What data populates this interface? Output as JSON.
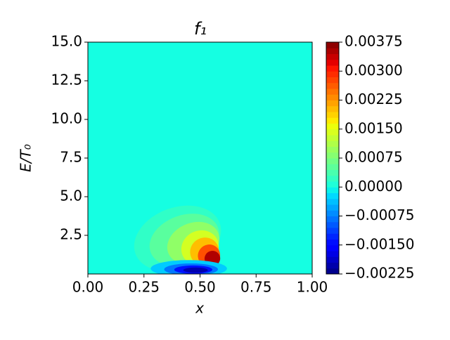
{
  "chart_data": {
    "type": "contour",
    "title": "f₁",
    "x_label": "x",
    "y_label": "E/T₀",
    "xlim": [
      0,
      1
    ],
    "ylim": [
      0,
      15
    ],
    "xticks": [
      {
        "value": 0,
        "label": "0.00"
      },
      {
        "value": 0.25,
        "label": "0.25"
      },
      {
        "value": 0.5,
        "label": "0.50"
      },
      {
        "value": 0.75,
        "label": "0.75"
      },
      {
        "value": 1,
        "label": "1.00"
      }
    ],
    "yticks": [
      {
        "value": 2.5,
        "label": "2.5"
      },
      {
        "value": 5,
        "label": "5.0"
      },
      {
        "value": 7.5,
        "label": "7.5"
      },
      {
        "value": 10,
        "label": "10.0"
      },
      {
        "value": 12.5,
        "label": "12.5"
      },
      {
        "value": 15,
        "label": "15.0"
      }
    ],
    "colormap": "jet",
    "background_level": 0,
    "clim": [
      -0.00225,
      0.00375
    ],
    "cticks": [
      {
        "value": -0.00225,
        "label": "−0.00225"
      },
      {
        "value": -0.0015,
        "label": "−0.00150"
      },
      {
        "value": -0.00075,
        "label": "−0.00075"
      },
      {
        "value": 0,
        "label": "0.00000"
      },
      {
        "value": 0.00075,
        "label": "0.00075"
      },
      {
        "value": 0.0015,
        "label": "0.00150"
      },
      {
        "value": 0.00225,
        "label": "0.00225"
      },
      {
        "value": 0.003,
        "label": "0.00300"
      },
      {
        "value": 0.00375,
        "label": "0.00375"
      }
    ],
    "contours": [
      {
        "level": 0.0002,
        "x": 0.4,
        "y": 2.3,
        "rx": 0.2,
        "ry": 2.0,
        "angle": -20
      },
      {
        "level": 0.0005,
        "x": 0.43,
        "y": 2.2,
        "rx": 0.16,
        "ry": 1.6,
        "angle": -20
      },
      {
        "level": 0.0009,
        "x": 0.47,
        "y": 2.0,
        "rx": 0.12,
        "ry": 1.3,
        "angle": -22
      },
      {
        "level": 0.0014,
        "x": 0.5,
        "y": 1.7,
        "rx": 0.085,
        "ry": 1.1,
        "angle": -25
      },
      {
        "level": 0.002,
        "x": 0.52,
        "y": 1.45,
        "rx": 0.065,
        "ry": 0.9,
        "angle": -28
      },
      {
        "level": 0.0027,
        "x": 0.54,
        "y": 1.2,
        "rx": 0.05,
        "ry": 0.7,
        "angle": -30
      },
      {
        "level": 0.0035,
        "x": 0.555,
        "y": 1.0,
        "rx": 0.035,
        "ry": 0.5,
        "angle": -30
      },
      {
        "level": -0.0003,
        "x": 0.45,
        "y": 0.35,
        "rx": 0.17,
        "ry": 0.55,
        "angle": 0
      },
      {
        "level": -0.0008,
        "x": 0.46,
        "y": 0.3,
        "rx": 0.12,
        "ry": 0.38,
        "angle": 0
      },
      {
        "level": -0.0014,
        "x": 0.47,
        "y": 0.28,
        "rx": 0.085,
        "ry": 0.27,
        "angle": 0
      },
      {
        "level": -0.002,
        "x": 0.48,
        "y": 0.25,
        "rx": 0.055,
        "ry": 0.17,
        "angle": 0
      }
    ]
  }
}
